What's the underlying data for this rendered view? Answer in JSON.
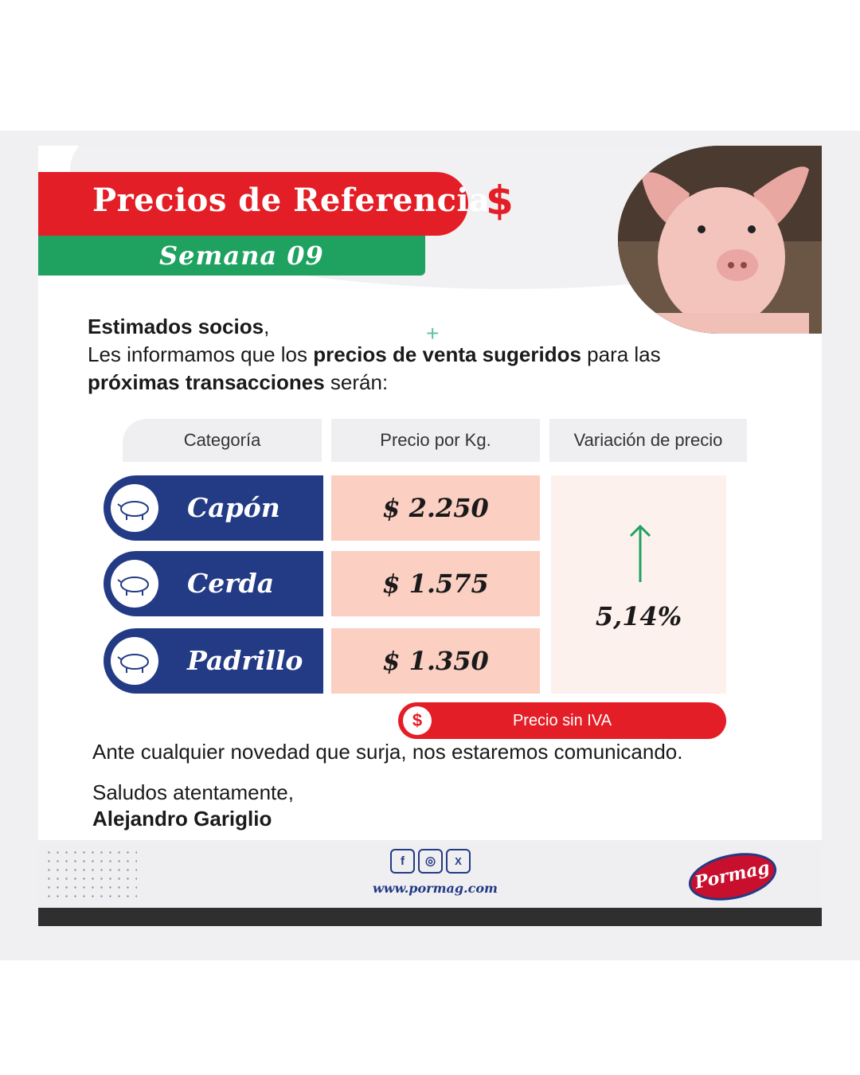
{
  "header": {
    "title": "Precios de Referencia",
    "currency_symbol": "$",
    "week": "Semana  09"
  },
  "intro": {
    "greeting": "Estimados socios",
    "greeting_punct": ",",
    "line2_a": "Les informamos que los ",
    "line2_b": "precios de venta sugeridos",
    "line2_c": " para las",
    "line3_a": "próximas transacciones",
    "line3_b": " serán:"
  },
  "table": {
    "headers": [
      "Categoría",
      "Precio por Kg.",
      "Variación de precio"
    ],
    "rows": [
      {
        "category": "Capón",
        "price": "$ 2.250",
        "icon": "pig-icon"
      },
      {
        "category": "Cerda",
        "price": "$ 1.575",
        "icon": "pig-icon"
      },
      {
        "category": "Padrillo",
        "price": "$ 1.350",
        "icon": "pig-icon"
      }
    ],
    "variation": "5,14%",
    "variation_direction": "up-arrow-icon"
  },
  "iva": {
    "symbol": "$",
    "label": "Precio sin IVA"
  },
  "closing": {
    "line1": "Ante cualquier novedad que surja, nos estaremos comunicando.",
    "line2": "Saludos atentamente,",
    "signature": "Alejandro Gariglio"
  },
  "footer": {
    "social": [
      "facebook-icon",
      "instagram-icon",
      "x-icon"
    ],
    "social_glyphs": [
      "f",
      "◎",
      "X"
    ],
    "website": "www.pormag.com",
    "logo_text": "Pormag"
  },
  "colors": {
    "red": "#e31e26",
    "green": "#1fa260",
    "navy": "#233a85",
    "salmon": "#fbcfc2"
  }
}
